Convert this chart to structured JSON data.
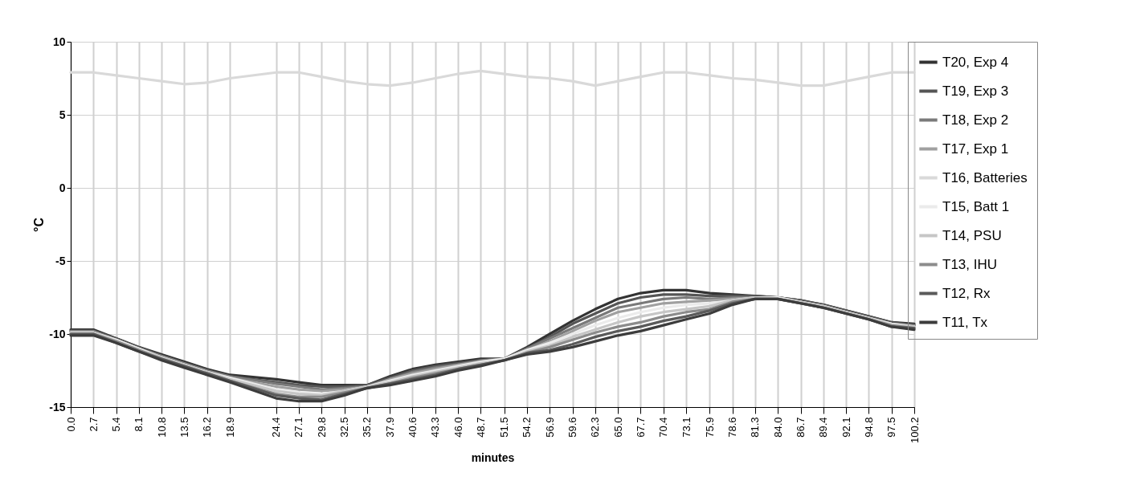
{
  "chart_data": {
    "type": "line",
    "xlabel": "minutes",
    "ylabel": "°C",
    "x": [
      0,
      2.7,
      5.4,
      8.1,
      10.8,
      13.5,
      16.2,
      18.9,
      24.4,
      27.1,
      29.8,
      32.5,
      35.2,
      37.9,
      40.6,
      43.3,
      46.0,
      48.7,
      51.5,
      54.2,
      56.9,
      59.6,
      62.3,
      65.0,
      67.7,
      70.4,
      73.1,
      75.9,
      78.6,
      81.3,
      84.0,
      86.7,
      89.4,
      92.1,
      94.8,
      97.5,
      100.2
    ],
    "xlim": [
      0,
      100.2
    ],
    "xticks": [
      {
        "value": 0,
        "label": "0.0"
      },
      2.7,
      5.4,
      8.1,
      10.8,
      13.5,
      16.2,
      18.9,
      24.4,
      27.1,
      29.8,
      32.5,
      35.2,
      37.9,
      40.6,
      43.3,
      {
        "value": 46,
        "label": "46.0"
      },
      48.7,
      51.5,
      54.2,
      56.9,
      59.6,
      62.3,
      {
        "value": 65,
        "label": "65.0"
      },
      67.7,
      70.4,
      73.1,
      75.9,
      78.6,
      81.3,
      {
        "value": 84,
        "label": "84.0"
      },
      86.7,
      89.4,
      92.1,
      94.8,
      97.5,
      100.2
    ],
    "ylim": [
      -15,
      10
    ],
    "yticks": [
      -15,
      -10,
      -5,
      0,
      5,
      10
    ],
    "grid": true,
    "legend": "right",
    "line_style": "solid",
    "marker": "none",
    "series": [
      {
        "name": "T20, Exp 4",
        "color": "#333333",
        "values": [
          -9.7,
          -9.7,
          -10.3,
          -10.9,
          -11.4,
          -11.9,
          -12.4,
          -12.8,
          -13.1,
          -13.3,
          -13.5,
          -13.5,
          -13.5,
          -12.9,
          -12.4,
          -12.1,
          -11.9,
          -11.7,
          -11.7,
          -10.9,
          -10.0,
          -9.1,
          -8.3,
          -7.6,
          -7.2,
          -7.0,
          -7.0,
          -7.2,
          -7.3,
          -7.4,
          -7.5,
          -7.7,
          -8.0,
          -8.4,
          -8.8,
          -9.2,
          -9.3
        ]
      },
      {
        "name": "T19, Exp 3",
        "color": "#555555",
        "values": [
          -9.8,
          -9.8,
          -10.3,
          -10.9,
          -11.5,
          -12.0,
          -12.5,
          -12.9,
          -13.3,
          -13.5,
          -13.6,
          -13.6,
          -13.5,
          -13.0,
          -12.5,
          -12.2,
          -12.0,
          -11.8,
          -11.7,
          -11.0,
          -10.2,
          -9.3,
          -8.6,
          -7.9,
          -7.5,
          -7.3,
          -7.3,
          -7.4,
          -7.4,
          -7.4,
          -7.5,
          -7.7,
          -8.0,
          -8.4,
          -8.8,
          -9.2,
          -9.4
        ]
      },
      {
        "name": "T18, Exp 2",
        "color": "#7a7a7a",
        "values": [
          -9.8,
          -9.8,
          -10.4,
          -11.0,
          -11.5,
          -12.0,
          -12.5,
          -12.9,
          -13.4,
          -13.6,
          -13.8,
          -13.7,
          -13.6,
          -13.1,
          -12.6,
          -12.3,
          -12.1,
          -11.8,
          -11.7,
          -11.0,
          -10.3,
          -9.6,
          -8.9,
          -8.2,
          -7.9,
          -7.6,
          -7.5,
          -7.6,
          -7.5,
          -7.5,
          -7.5,
          -7.8,
          -8.1,
          -8.5,
          -8.9,
          -9.3,
          -9.4
        ]
      },
      {
        "name": "T17, Exp 1",
        "color": "#a0a0a0",
        "values": [
          -9.9,
          -9.9,
          -10.4,
          -11.0,
          -11.6,
          -12.1,
          -12.6,
          -13.0,
          -13.6,
          -13.8,
          -13.9,
          -13.8,
          -13.6,
          -13.1,
          -12.7,
          -12.4,
          -12.1,
          -11.9,
          -11.7,
          -11.1,
          -10.5,
          -9.8,
          -9.1,
          -8.5,
          -8.2,
          -7.9,
          -7.8,
          -7.7,
          -7.6,
          -7.5,
          -7.5,
          -7.8,
          -8.1,
          -8.5,
          -8.9,
          -9.3,
          -9.5
        ]
      },
      {
        "name": "T16, Batteries",
        "color": "#d9d9d9",
        "values": [
          7.9,
          7.9,
          7.7,
          7.5,
          7.3,
          7.1,
          7.2,
          7.5,
          7.9,
          7.9,
          7.6,
          7.3,
          7.1,
          7.0,
          7.2,
          7.5,
          7.8,
          8.0,
          7.8,
          7.6,
          7.5,
          7.3,
          7.0,
          7.3,
          7.6,
          7.9,
          7.9,
          7.7,
          7.5,
          7.4,
          7.2,
          7.0,
          7.0,
          7.3,
          7.6,
          7.9,
          7.9
        ]
      },
      {
        "name": "T15, Batt 1",
        "color": "#ebebeb",
        "values": [
          -9.9,
          -9.9,
          -10.4,
          -11.0,
          -11.6,
          -12.1,
          -12.6,
          -13.0,
          -13.8,
          -14.0,
          -14.1,
          -13.9,
          -13.6,
          -13.2,
          -12.8,
          -12.5,
          -12.2,
          -11.9,
          -11.7,
          -11.1,
          -10.6,
          -10.0,
          -9.4,
          -8.9,
          -8.5,
          -8.2,
          -8.0,
          -7.9,
          -7.7,
          -7.5,
          -7.5,
          -7.8,
          -8.1,
          -8.5,
          -8.9,
          -9.3,
          -9.5
        ]
      },
      {
        "name": "T14, PSU",
        "color": "#c6c6c6",
        "values": [
          -9.9,
          -9.9,
          -10.5,
          -11.1,
          -11.6,
          -12.1,
          -12.6,
          -13.1,
          -13.9,
          -14.1,
          -14.2,
          -13.9,
          -13.6,
          -13.3,
          -12.9,
          -12.6,
          -12.3,
          -12.0,
          -11.8,
          -11.2,
          -10.8,
          -10.2,
          -9.7,
          -9.2,
          -8.8,
          -8.5,
          -8.3,
          -8.1,
          -7.7,
          -7.5,
          -7.6,
          -7.8,
          -8.1,
          -8.5,
          -8.9,
          -9.4,
          -9.5
        ]
      },
      {
        "name": "T13, IHU",
        "color": "#8c8c8c",
        "values": [
          -10.0,
          -10.0,
          -10.5,
          -11.1,
          -11.7,
          -12.2,
          -12.7,
          -13.2,
          -14.1,
          -14.3,
          -14.3,
          -14.0,
          -13.7,
          -13.4,
          -13.0,
          -12.7,
          -12.4,
          -12.1,
          -11.8,
          -11.3,
          -10.9,
          -10.4,
          -9.9,
          -9.5,
          -9.2,
          -8.8,
          -8.5,
          -8.3,
          -7.8,
          -7.6,
          -7.6,
          -7.9,
          -8.2,
          -8.6,
          -9.0,
          -9.4,
          -9.6
        ]
      },
      {
        "name": "T12, Rx",
        "color": "#5a5a5a",
        "values": [
          -10.0,
          -10.0,
          -10.6,
          -11.2,
          -11.7,
          -12.2,
          -12.7,
          -13.2,
          -14.2,
          -14.4,
          -14.5,
          -14.1,
          -13.7,
          -13.4,
          -13.1,
          -12.8,
          -12.4,
          -12.1,
          -11.8,
          -11.3,
          -11.1,
          -10.7,
          -10.2,
          -9.8,
          -9.5,
          -9.1,
          -8.8,
          -8.4,
          -7.9,
          -7.6,
          -7.6,
          -7.9,
          -8.2,
          -8.6,
          -9.0,
          -9.5,
          -9.6
        ]
      },
      {
        "name": "T11, Tx",
        "color": "#3c3c3c",
        "values": [
          -10.1,
          -10.1,
          -10.6,
          -11.2,
          -11.8,
          -12.3,
          -12.8,
          -13.3,
          -14.4,
          -14.6,
          -14.6,
          -14.2,
          -13.7,
          -13.5,
          -13.2,
          -12.9,
          -12.5,
          -12.2,
          -11.8,
          -11.4,
          -11.2,
          -10.9,
          -10.5,
          -10.1,
          -9.8,
          -9.4,
          -9.0,
          -8.6,
          -8.0,
          -7.6,
          -7.6,
          -7.9,
          -8.2,
          -8.6,
          -9.0,
          -9.5,
          -9.7
        ]
      }
    ]
  }
}
